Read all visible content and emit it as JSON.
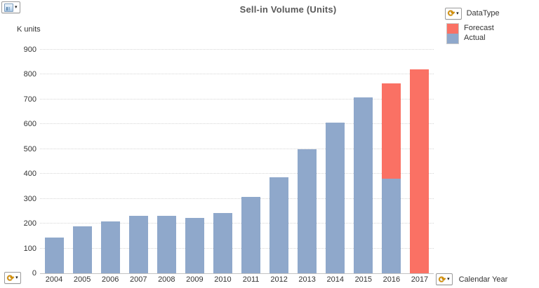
{
  "header": {
    "title": "Sell-in Volume (Units)"
  },
  "y_axis": {
    "unit": "K units",
    "tick_labels": [
      "0",
      "100",
      "200",
      "300",
      "400",
      "500",
      "600",
      "700",
      "800",
      "900"
    ]
  },
  "x_axis": {
    "label": "Calendar Year"
  },
  "legend": {
    "group_label": "DataType",
    "items": [
      {
        "label": "Forecast",
        "color": "#FA7164"
      },
      {
        "label": "Actual",
        "color": "#8FA8CB"
      }
    ]
  },
  "icons": {
    "circular_arrow": "⟳",
    "dropdown_caret": "▾"
  },
  "colors": {
    "forecast": "#FA7164",
    "actual": "#8FA8CB",
    "gridline": "#d6d6d6",
    "title_text": "#595959"
  },
  "chart_data": {
    "type": "bar",
    "stacked": true,
    "title": "Sell-in Volume (Units)",
    "ylabel": "K units",
    "xlabel": "Calendar Year",
    "ylim": [
      0,
      900
    ],
    "ytick_step": 100,
    "grid": "horizontal-dotted",
    "legend_position": "top-right",
    "categories": [
      "2004",
      "2005",
      "2006",
      "2007",
      "2008",
      "2009",
      "2010",
      "2011",
      "2012",
      "2013",
      "2014",
      "2015",
      "2016",
      "2017"
    ],
    "series": [
      {
        "name": "Actual",
        "color": "#8FA8CB",
        "values": [
          145,
          190,
          210,
          232,
          232,
          222,
          243,
          307,
          386,
          500,
          606,
          708,
          382,
          0
        ]
      },
      {
        "name": "Forecast",
        "color": "#FA7164",
        "values": [
          0,
          0,
          0,
          0,
          0,
          0,
          0,
          0,
          0,
          0,
          0,
          0,
          383,
          820
        ]
      }
    ]
  }
}
